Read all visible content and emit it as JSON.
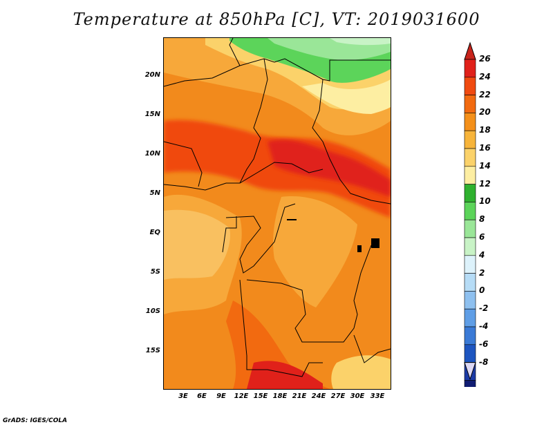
{
  "title": "Temperature at 850hPa [C], VT: 2019031600",
  "credit": "GrADS: IGES/COLA",
  "lat_labels": [
    "20N",
    "15N",
    "10N",
    "5N",
    "EQ",
    "5S",
    "10S",
    "15S"
  ],
  "lon_labels": [
    "3E",
    "6E",
    "9E",
    "12E",
    "15E",
    "18E",
    "21E",
    "24E",
    "27E",
    "30E",
    "33E"
  ],
  "colorbar": {
    "levels": [
      "26",
      "24",
      "22",
      "20",
      "18",
      "16",
      "14",
      "12",
      "10",
      "8",
      "6",
      "4",
      "2",
      "0",
      "-2",
      "-4",
      "-6",
      "-8"
    ],
    "colors": [
      "#e0211a",
      "#f04a10",
      "#f26a10",
      "#f4901a",
      "#f7b43a",
      "#fbd26a",
      "#fdeea2",
      "#2fb12f",
      "#5cd45a",
      "#9ae698",
      "#c8f3c6",
      "#ddf2fb",
      "#b6dcf6",
      "#8ec0ef",
      "#5f9ee6",
      "#3a7ad6",
      "#1d55c0",
      "#1b3aa6",
      "#101c72"
    ],
    "top_arrow_color": "#c8241c",
    "bottom_arrow_color": "#dcd8f4"
  }
}
